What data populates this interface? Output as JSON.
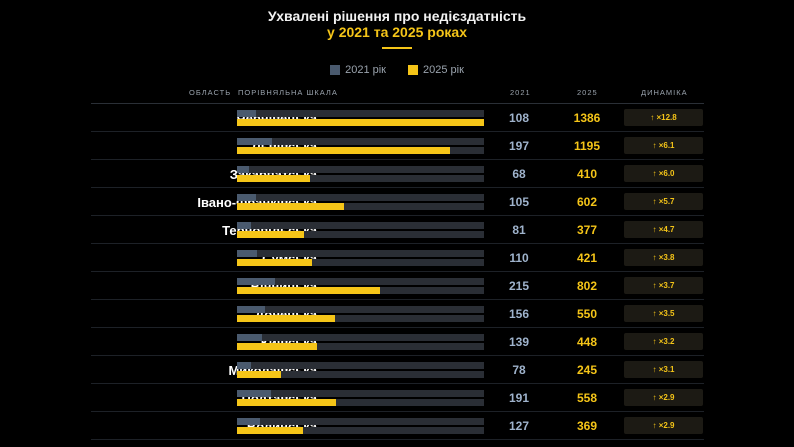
{
  "title": {
    "line1": "Ухвалені рішення про недієздатність",
    "line2": "у 2021 та 2025 роках"
  },
  "legend": [
    {
      "label": "2021 рік",
      "color": "#4a5a6e"
    },
    {
      "label": "2025 рік",
      "color": "#f5c518"
    }
  ],
  "columns": {
    "region": "ОБЛАСТЬ",
    "scale": "ПОРІВНЯЛЬНА ШКАЛА",
    "y2021": "2021",
    "y2025": "2025",
    "dynamics": "ДИНАМІКА"
  },
  "chart_data": {
    "type": "bar",
    "title": "Ухвалені рішення про недієздатність у 2021 та 2025 роках",
    "categories": [
      "Чернівецька",
      "Львівська",
      "Закарпатська",
      "Івано-Франківська",
      "Тернопільська",
      "Сумська",
      "Вінницька",
      "Донецька",
      "Київська",
      "Миколаївська",
      "Полтавська",
      "Волинська"
    ],
    "series": [
      {
        "name": "2021 рік",
        "values": [
          108,
          197,
          68,
          105,
          81,
          110,
          215,
          156,
          139,
          78,
          191,
          127
        ]
      },
      {
        "name": "2025 рік",
        "values": [
          1386,
          1195,
          410,
          602,
          377,
          421,
          802,
          550,
          448,
          245,
          558,
          369
        ]
      }
    ],
    "dynamics": [
      "↑ ×12.8",
      "↑ ×6.1",
      "↑ ×6.0",
      "↑ ×5.7",
      "↑ ×4.7",
      "↑ ×3.8",
      "↑ ×3.7",
      "↑ ×3.5",
      "↑ ×3.2",
      "↑ ×3.1",
      "↑ ×2.9",
      "↑ ×2.9"
    ],
    "xlim": [
      0,
      1386
    ],
    "legend_position": "top"
  }
}
